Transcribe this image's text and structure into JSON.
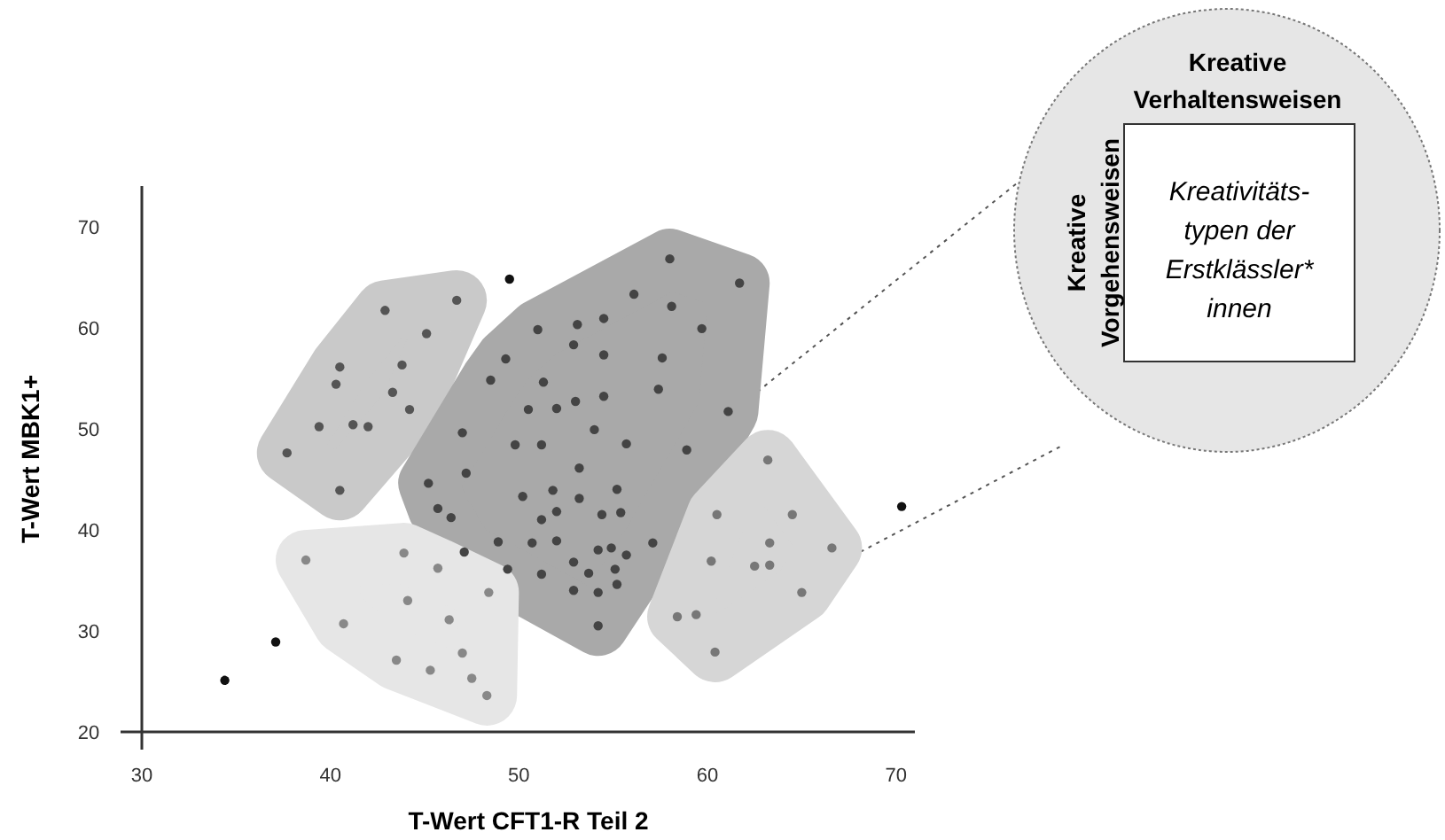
{
  "chart_data": {
    "type": "scatter",
    "xlabel": "T-Wert CFT1-R Teil 2",
    "ylabel": "T-Wert MBK1+",
    "xlim": [
      30,
      71
    ],
    "ylim": [
      20,
      74
    ],
    "xticks": [
      30,
      40,
      50,
      60,
      70
    ],
    "yticks": [
      20,
      30,
      40,
      50,
      60,
      70
    ],
    "marker": "circle",
    "annotations": [
      "Kreative\nVerhaltensweisen",
      "Kreative\nVorgehensweisen",
      "Kreativitäts-\ntypen der\nErstklässler*\ninnen"
    ],
    "series": [
      {
        "color": "#555555",
        "x": [
          42.9,
          46.7,
          45.1,
          40.5,
          43.8,
          40.3,
          43.3,
          44.2,
          39.4,
          41.2,
          42.0,
          37.7,
          40.5
        ],
        "values": [
          61.7,
          62.7,
          59.4,
          56.1,
          56.3,
          54.4,
          53.6,
          51.9,
          50.2,
          50.4,
          50.2,
          47.6,
          43.9
        ]
      },
      {
        "color": "#444444",
        "x": [
          58.0,
          61.7,
          56.1,
          58.1,
          59.7,
          51.0,
          53.1,
          54.5,
          52.9,
          54.5,
          49.3,
          57.6,
          48.5,
          51.3,
          57.4,
          54.5,
          53.0,
          50.5,
          52.0,
          61.1,
          47.0,
          54.0,
          49.8,
          51.2,
          55.7,
          58.9,
          53.2,
          47.2,
          45.2,
          50.2,
          51.8,
          55.2,
          53.2,
          45.7,
          46.4,
          52.0,
          51.2,
          54.4,
          55.4,
          48.9,
          50.7,
          52.0,
          57.1,
          47.1,
          54.2,
          54.9,
          55.7,
          52.9,
          49.4,
          51.2,
          53.7,
          55.1,
          55.2,
          52.9,
          54.2,
          54.2
        ],
        "values": [
          66.8,
          64.4,
          63.3,
          62.1,
          59.9,
          59.8,
          60.3,
          60.9,
          58.3,
          57.3,
          56.9,
          57.0,
          54.8,
          54.6,
          53.9,
          53.2,
          52.7,
          51.9,
          52.0,
          51.7,
          49.6,
          49.9,
          48.4,
          48.4,
          48.5,
          47.9,
          46.1,
          45.6,
          44.6,
          43.3,
          43.9,
          44.0,
          43.1,
          42.1,
          41.2,
          41.8,
          41.0,
          41.5,
          41.7,
          38.8,
          38.7,
          38.9,
          38.7,
          37.8,
          38.0,
          38.2,
          37.5,
          36.8,
          36.1,
          35.6,
          35.7,
          36.1,
          34.6,
          34.0,
          33.8,
          30.5
        ]
      },
      {
        "color": "#888888",
        "x": [
          38.7,
          43.9,
          45.7,
          48.4,
          44.1,
          40.7,
          46.3,
          47.0,
          43.5,
          45.3,
          47.5,
          48.3
        ],
        "values": [
          37.0,
          37.7,
          36.2,
          33.8,
          33.0,
          30.7,
          31.1,
          27.8,
          27.1,
          26.1,
          25.3,
          23.6
        ]
      },
      {
        "color": "#777777",
        "x": [
          63.2,
          60.5,
          64.5,
          63.3,
          66.6,
          60.2,
          62.5,
          63.3,
          65.0,
          58.4,
          59.4,
          60.4
        ],
        "values": [
          46.9,
          41.5,
          41.5,
          38.7,
          38.2,
          36.9,
          36.4,
          36.5,
          33.8,
          31.4,
          31.6,
          27.9
        ]
      },
      {
        "color": "#111111",
        "x": [
          49.5,
          37.1,
          34.4,
          70.3
        ],
        "values": [
          64.8,
          28.9,
          25.1,
          42.3
        ]
      }
    ]
  }
}
